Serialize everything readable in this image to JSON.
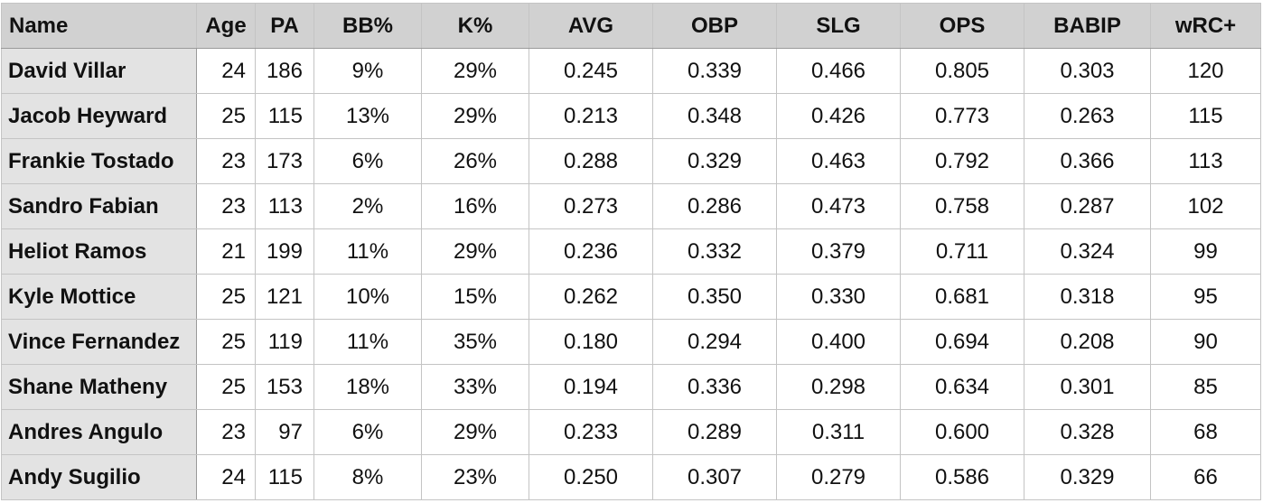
{
  "table": {
    "columns": [
      "Name",
      "Age",
      "PA",
      "BB%",
      "K%",
      "AVG",
      "OBP",
      "SLG",
      "OPS",
      "BABIP",
      "wRC+"
    ],
    "rows": [
      [
        "David Villar",
        "24",
        "186",
        "9%",
        "29%",
        "0.245",
        "0.339",
        "0.466",
        "0.805",
        "0.303",
        "120"
      ],
      [
        "Jacob Heyward",
        "25",
        "115",
        "13%",
        "29%",
        "0.213",
        "0.348",
        "0.426",
        "0.773",
        "0.263",
        "115"
      ],
      [
        "Frankie Tostado",
        "23",
        "173",
        "6%",
        "26%",
        "0.288",
        "0.329",
        "0.463",
        "0.792",
        "0.366",
        "113"
      ],
      [
        "Sandro Fabian",
        "23",
        "113",
        "2%",
        "16%",
        "0.273",
        "0.286",
        "0.473",
        "0.758",
        "0.287",
        "102"
      ],
      [
        "Heliot Ramos",
        "21",
        "199",
        "11%",
        "29%",
        "0.236",
        "0.332",
        "0.379",
        "0.711",
        "0.324",
        "99"
      ],
      [
        "Kyle Mottice",
        "25",
        "121",
        "10%",
        "15%",
        "0.262",
        "0.350",
        "0.330",
        "0.681",
        "0.318",
        "95"
      ],
      [
        "Vince Fernandez",
        "25",
        "119",
        "11%",
        "35%",
        "0.180",
        "0.294",
        "0.400",
        "0.694",
        "0.208",
        "90"
      ],
      [
        "Shane Matheny",
        "25",
        "153",
        "18%",
        "33%",
        "0.194",
        "0.336",
        "0.298",
        "0.634",
        "0.301",
        "85"
      ],
      [
        "Andres Angulo",
        "23",
        "97",
        "6%",
        "29%",
        "0.233",
        "0.289",
        "0.311",
        "0.600",
        "0.328",
        "68"
      ],
      [
        "Andy Sugilio",
        "24",
        "115",
        "8%",
        "23%",
        "0.250",
        "0.307",
        "0.279",
        "0.586",
        "0.329",
        "66"
      ]
    ]
  },
  "colors": {
    "header_bg": "#d1d1d1",
    "name_col_bg": "#e3e3e3",
    "grid": "#c4c4c4"
  }
}
